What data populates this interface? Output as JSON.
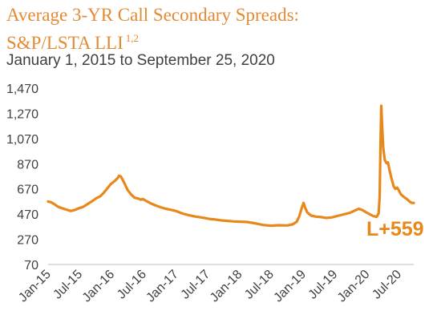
{
  "colors": {
    "accent": "#E8881A",
    "title": "#E28A34",
    "text": "#404040",
    "axis": "#BFBFBF"
  },
  "title_line1": "Average 3-YR Call Secondary Spreads:",
  "title_line2": "S&P/LSTA LLI",
  "title_footnote": "1,2",
  "subtitle": "January 1, 2015 to September 25, 2020",
  "chart_data": {
    "type": "line",
    "title": "Average 3-YR Call Secondary Spreads: S&P/LSTA LLI",
    "subtitle": "January 1, 2015 to September 25, 2020",
    "xlabel": "",
    "ylabel": "",
    "ylim": [
      70,
      1470
    ],
    "yticks": [
      70,
      270,
      470,
      670,
      870,
      1070,
      1270,
      1470
    ],
    "ytick_labels": [
      "70",
      "270",
      "470",
      "670",
      "870",
      "1,070",
      "1,270",
      "1,470"
    ],
    "x_range": [
      "2015-01-01",
      "2020-09-25"
    ],
    "xticks": [
      "2015-01-01",
      "2015-07-01",
      "2016-01-01",
      "2016-07-01",
      "2017-01-01",
      "2017-07-01",
      "2018-01-01",
      "2018-07-01",
      "2019-01-01",
      "2019-07-01",
      "2020-01-01",
      "2020-07-01"
    ],
    "xtick_labels": [
      "Jan-15",
      "Jul-15",
      "Jan-16",
      "Jul-16",
      "Jan-17",
      "Jul-17",
      "Jan-18",
      "Jul-18",
      "Jan-19",
      "Jul-19",
      "Jan-20",
      "Jul-20"
    ],
    "grid": false,
    "legend": "none",
    "series": [
      {
        "points": [
          [
            "2015-01-01",
            570
          ],
          [
            "2015-01-20",
            563
          ],
          [
            "2015-02-10",
            545
          ],
          [
            "2015-03-01",
            527
          ],
          [
            "2015-03-20",
            518
          ],
          [
            "2015-04-15",
            506
          ],
          [
            "2015-05-10",
            495
          ],
          [
            "2015-06-01",
            502
          ],
          [
            "2015-06-25",
            516
          ],
          [
            "2015-07-20",
            527
          ],
          [
            "2015-08-15",
            550
          ],
          [
            "2015-09-10",
            573
          ],
          [
            "2015-10-05",
            597
          ],
          [
            "2015-10-25",
            610
          ],
          [
            "2015-11-15",
            638
          ],
          [
            "2015-12-05",
            672
          ],
          [
            "2015-12-25",
            707
          ],
          [
            "2016-01-15",
            730
          ],
          [
            "2016-02-01",
            752
          ],
          [
            "2016-02-12",
            775
          ],
          [
            "2016-02-22",
            768
          ],
          [
            "2016-03-10",
            724
          ],
          [
            "2016-04-01",
            660
          ],
          [
            "2016-04-20",
            627
          ],
          [
            "2016-05-10",
            600
          ],
          [
            "2016-06-01",
            593
          ],
          [
            "2016-06-15",
            585
          ],
          [
            "2016-06-27",
            590
          ],
          [
            "2016-07-15",
            575
          ],
          [
            "2016-08-10",
            556
          ],
          [
            "2016-09-05",
            540
          ],
          [
            "2016-10-05",
            525
          ],
          [
            "2016-11-05",
            512
          ],
          [
            "2016-12-05",
            504
          ],
          [
            "2017-01-01",
            495
          ],
          [
            "2017-02-10",
            474
          ],
          [
            "2017-03-15",
            462
          ],
          [
            "2017-04-20",
            451
          ],
          [
            "2017-06-01",
            443
          ],
          [
            "2017-07-10",
            432
          ],
          [
            "2017-08-15",
            427
          ],
          [
            "2017-09-20",
            420
          ],
          [
            "2017-10-25",
            416
          ],
          [
            "2017-12-01",
            412
          ],
          [
            "2018-01-01",
            410
          ],
          [
            "2018-02-15",
            407
          ],
          [
            "2018-03-30",
            397
          ],
          [
            "2018-05-15",
            384
          ],
          [
            "2018-07-01",
            378
          ],
          [
            "2018-08-15",
            382
          ],
          [
            "2018-10-01",
            380
          ],
          [
            "2018-11-01",
            388
          ],
          [
            "2018-11-25",
            410
          ],
          [
            "2018-12-10",
            455
          ],
          [
            "2018-12-20",
            502
          ],
          [
            "2018-12-28",
            535
          ],
          [
            "2019-01-03",
            559
          ],
          [
            "2019-01-12",
            520
          ],
          [
            "2019-01-25",
            482
          ],
          [
            "2019-02-15",
            458
          ],
          [
            "2019-03-15",
            450
          ],
          [
            "2019-04-15",
            446
          ],
          [
            "2019-05-15",
            440
          ],
          [
            "2019-06-15",
            444
          ],
          [
            "2019-07-15",
            455
          ],
          [
            "2019-08-20",
            468
          ],
          [
            "2019-09-25",
            480
          ],
          [
            "2019-10-25",
            499
          ],
          [
            "2019-11-15",
            512
          ],
          [
            "2019-12-05",
            503
          ],
          [
            "2019-12-25",
            486
          ],
          [
            "2020-01-15",
            470
          ],
          [
            "2020-02-05",
            455
          ],
          [
            "2020-02-25",
            448
          ],
          [
            "2020-03-08",
            475
          ],
          [
            "2020-03-14",
            610
          ],
          [
            "2020-03-19",
            1050
          ],
          [
            "2020-03-23",
            1330
          ],
          [
            "2020-03-28",
            1165
          ],
          [
            "2020-04-03",
            1000
          ],
          [
            "2020-04-12",
            900
          ],
          [
            "2020-04-22",
            875
          ],
          [
            "2020-04-30",
            880
          ],
          [
            "2020-05-10",
            815
          ],
          [
            "2020-05-22",
            745
          ],
          [
            "2020-06-02",
            690
          ],
          [
            "2020-06-12",
            670
          ],
          [
            "2020-06-22",
            680
          ],
          [
            "2020-07-01",
            660
          ],
          [
            "2020-07-12",
            630
          ],
          [
            "2020-07-25",
            612
          ],
          [
            "2020-08-08",
            598
          ],
          [
            "2020-08-22",
            583
          ],
          [
            "2020-09-05",
            566
          ],
          [
            "2020-09-15",
            559
          ],
          [
            "2020-09-25",
            559
          ]
        ]
      }
    ],
    "annotations": [
      {
        "text": "L+559",
        "x": "2020-09-25",
        "y": 559
      }
    ]
  }
}
